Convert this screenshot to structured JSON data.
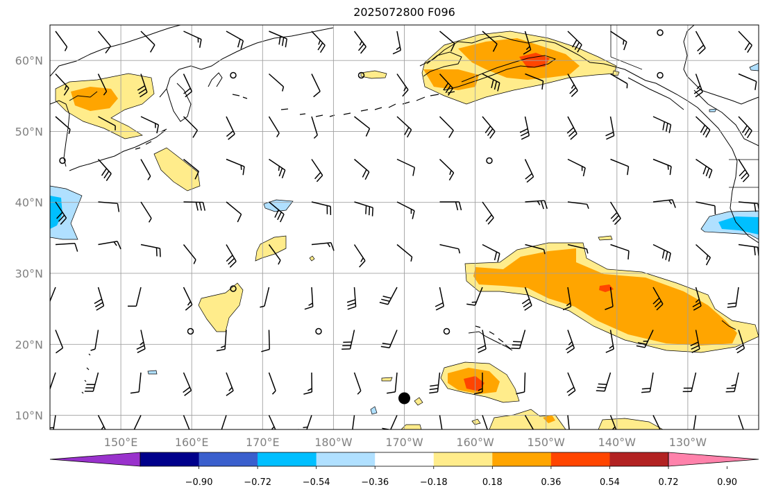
{
  "title": "2025072800 F096",
  "map": {
    "lon_range": [
      140,
      240
    ],
    "lat_range": [
      8,
      65
    ],
    "lat_ticks": [
      {
        "value": 10,
        "label": "10°N"
      },
      {
        "value": 20,
        "label": "20°N"
      },
      {
        "value": 30,
        "label": "30°N"
      },
      {
        "value": 40,
        "label": "40°N"
      },
      {
        "value": 50,
        "label": "50°N"
      },
      {
        "value": 60,
        "label": "60°N"
      }
    ],
    "lon_ticks": [
      {
        "value": 150,
        "label": "150°E"
      },
      {
        "value": 160,
        "label": "160°E"
      },
      {
        "value": 170,
        "label": "170°E"
      },
      {
        "value": 180,
        "label": "180°W"
      },
      {
        "value": 190,
        "label": "170°W"
      },
      {
        "value": 200,
        "label": "160°W"
      },
      {
        "value": 210,
        "label": "150°W"
      },
      {
        "value": 220,
        "label": "140°W"
      },
      {
        "value": 230,
        "label": "130°W"
      }
    ],
    "grid": true,
    "storm_marker": {
      "lon": 190,
      "lat": 12.4,
      "color": "#000000"
    }
  },
  "colorbar": {
    "extend": "both",
    "colors": [
      "#9932cc",
      "#00008b",
      "#3a5fcd",
      "#00bfff",
      "#b0e0ff",
      "#ffffff",
      "#ffec8b",
      "#ffa500",
      "#ff4500",
      "#b22222",
      "#ff82ab"
    ],
    "levels": [
      -1.08,
      -0.9,
      -0.72,
      -0.54,
      -0.36,
      -0.18,
      0.18,
      0.36,
      0.54,
      0.72,
      0.9,
      1.08
    ],
    "tick_labels": [
      "−0.90",
      "−0.72",
      "−0.54",
      "−0.36",
      "−0.18",
      "0.18",
      "0.36",
      "0.54",
      "0.72",
      "0.90"
    ]
  }
}
